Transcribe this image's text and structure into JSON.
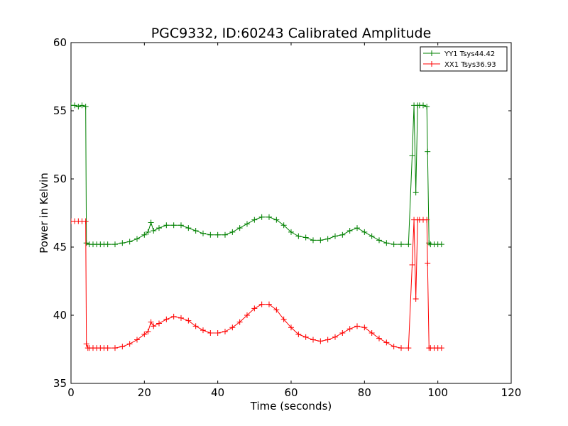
{
  "chart_data": {
    "type": "line",
    "title": "PGC9332, ID:60243 Calibrated Amplitude",
    "xlabel": "Time (seconds)",
    "ylabel": "Power in Kelvin",
    "xlim": [
      0,
      120
    ],
    "ylim": [
      35,
      60
    ],
    "xticks": [
      "0",
      "20",
      "40",
      "60",
      "80",
      "100",
      "120"
    ],
    "yticks": [
      "35",
      "40",
      "45",
      "50",
      "55",
      "60"
    ],
    "grid": false,
    "legend_position": "top-right",
    "marker": "+",
    "series": [
      {
        "name": "YY1 Tsys44.42",
        "color": "#008000",
        "points": [
          [
            0,
            55.4
          ],
          [
            1,
            55.4
          ],
          [
            2,
            55.3
          ],
          [
            3,
            55.4
          ],
          [
            4,
            55.3
          ],
          [
            4.2,
            45.3
          ],
          [
            5,
            45.2
          ],
          [
            6,
            45.2
          ],
          [
            7,
            45.2
          ],
          [
            8,
            45.2
          ],
          [
            9,
            45.2
          ],
          [
            10,
            45.2
          ],
          [
            12,
            45.2
          ],
          [
            14,
            45.3
          ],
          [
            16,
            45.4
          ],
          [
            18,
            45.6
          ],
          [
            20,
            45.9
          ],
          [
            21,
            46.1
          ],
          [
            21.8,
            46.8
          ],
          [
            22.5,
            46.2
          ],
          [
            24,
            46.4
          ],
          [
            26,
            46.6
          ],
          [
            28,
            46.6
          ],
          [
            30,
            46.6
          ],
          [
            32,
            46.4
          ],
          [
            34,
            46.2
          ],
          [
            36,
            46.0
          ],
          [
            38,
            45.9
          ],
          [
            40,
            45.9
          ],
          [
            42,
            45.9
          ],
          [
            44,
            46.1
          ],
          [
            46,
            46.4
          ],
          [
            48,
            46.7
          ],
          [
            50,
            47.0
          ],
          [
            52,
            47.2
          ],
          [
            54,
            47.2
          ],
          [
            56,
            47.0
          ],
          [
            58,
            46.6
          ],
          [
            60,
            46.1
          ],
          [
            62,
            45.8
          ],
          [
            64,
            45.7
          ],
          [
            66,
            45.5
          ],
          [
            68,
            45.5
          ],
          [
            70,
            45.6
          ],
          [
            72,
            45.8
          ],
          [
            74,
            45.9
          ],
          [
            76,
            46.2
          ],
          [
            78,
            46.4
          ],
          [
            80,
            46.1
          ],
          [
            82,
            45.8
          ],
          [
            84,
            45.5
          ],
          [
            86,
            45.3
          ],
          [
            88,
            45.2
          ],
          [
            90,
            45.2
          ],
          [
            92,
            45.2
          ],
          [
            93,
            51.7
          ],
          [
            93.5,
            55.4
          ],
          [
            94,
            49.0
          ],
          [
            94.5,
            55.4
          ],
          [
            95,
            55.4
          ],
          [
            96,
            55.4
          ],
          [
            97,
            55.3
          ],
          [
            97.2,
            52.0
          ],
          [
            97.6,
            45.3
          ],
          [
            98,
            45.2
          ],
          [
            99,
            45.2
          ],
          [
            100,
            45.2
          ],
          [
            101,
            45.2
          ]
        ]
      },
      {
        "name": "XX1 Tsys36.93",
        "color": "#ff0000",
        "points": [
          [
            0,
            46.9
          ],
          [
            1,
            46.9
          ],
          [
            2,
            46.9
          ],
          [
            3,
            46.9
          ],
          [
            4,
            46.9
          ],
          [
            4.2,
            37.9
          ],
          [
            4.6,
            37.6
          ],
          [
            5,
            37.6
          ],
          [
            6,
            37.6
          ],
          [
            7,
            37.6
          ],
          [
            8,
            37.6
          ],
          [
            9,
            37.6
          ],
          [
            10,
            37.6
          ],
          [
            12,
            37.6
          ],
          [
            14,
            37.7
          ],
          [
            16,
            37.9
          ],
          [
            18,
            38.2
          ],
          [
            20,
            38.6
          ],
          [
            21,
            38.8
          ],
          [
            21.8,
            39.5
          ],
          [
            22.5,
            39.2
          ],
          [
            24,
            39.4
          ],
          [
            26,
            39.7
          ],
          [
            28,
            39.9
          ],
          [
            30,
            39.8
          ],
          [
            32,
            39.6
          ],
          [
            34,
            39.2
          ],
          [
            36,
            38.9
          ],
          [
            38,
            38.7
          ],
          [
            40,
            38.7
          ],
          [
            42,
            38.8
          ],
          [
            44,
            39.1
          ],
          [
            46,
            39.5
          ],
          [
            48,
            40.0
          ],
          [
            50,
            40.5
          ],
          [
            52,
            40.8
          ],
          [
            54,
            40.8
          ],
          [
            56,
            40.4
          ],
          [
            58,
            39.7
          ],
          [
            60,
            39.1
          ],
          [
            62,
            38.6
          ],
          [
            64,
            38.4
          ],
          [
            66,
            38.2
          ],
          [
            68,
            38.1
          ],
          [
            70,
            38.2
          ],
          [
            72,
            38.4
          ],
          [
            74,
            38.7
          ],
          [
            76,
            39.0
          ],
          [
            78,
            39.2
          ],
          [
            80,
            39.1
          ],
          [
            82,
            38.7
          ],
          [
            84,
            38.3
          ],
          [
            86,
            38.0
          ],
          [
            88,
            37.7
          ],
          [
            90,
            37.6
          ],
          [
            92,
            37.6
          ],
          [
            93,
            43.7
          ],
          [
            93.5,
            47.0
          ],
          [
            94,
            41.2
          ],
          [
            94.5,
            47.0
          ],
          [
            95,
            47.0
          ],
          [
            96,
            47.0
          ],
          [
            97,
            47.0
          ],
          [
            97.2,
            43.8
          ],
          [
            97.6,
            37.6
          ],
          [
            98,
            37.6
          ],
          [
            99,
            37.6
          ],
          [
            100,
            37.6
          ],
          [
            101,
            37.6
          ]
        ]
      }
    ]
  }
}
